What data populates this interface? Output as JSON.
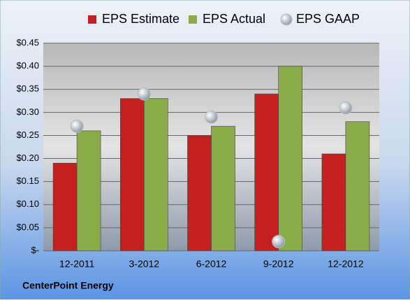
{
  "chart_data": {
    "type": "bar",
    "categories": [
      "12-2011",
      "3-2012",
      "6-2012",
      "9-2012",
      "12-2012"
    ],
    "series": [
      {
        "name": "EPS Estimate",
        "color": "#c42020",
        "type": "bar",
        "values": [
          0.19,
          0.33,
          0.25,
          0.34,
          0.21
        ]
      },
      {
        "name": "EPS Actual",
        "color": "#8aab48",
        "type": "bar",
        "values": [
          0.26,
          0.33,
          0.27,
          0.4,
          0.28
        ]
      },
      {
        "name": "EPS GAAP",
        "color": "#b4bcc8",
        "type": "scatter",
        "values": [
          0.27,
          0.34,
          0.29,
          0.02,
          0.31
        ]
      }
    ],
    "ylim": [
      0,
      0.45
    ],
    "yticks": [
      {
        "value": 0,
        "label": "$-"
      },
      {
        "value": 0.05,
        "label": "$0.05"
      },
      {
        "value": 0.1,
        "label": "$0.10"
      },
      {
        "value": 0.15,
        "label": "$0.15"
      },
      {
        "value": 0.2,
        "label": "$0.20"
      },
      {
        "value": 0.25,
        "label": "$0.25"
      },
      {
        "value": 0.3,
        "label": "$0.30"
      },
      {
        "value": 0.35,
        "label": "$0.35"
      },
      {
        "value": 0.4,
        "label": "$0.40"
      },
      {
        "value": 0.45,
        "label": "$0.45"
      }
    ],
    "grid": true,
    "legend": "top",
    "footer": "CenterPoint Energy"
  }
}
